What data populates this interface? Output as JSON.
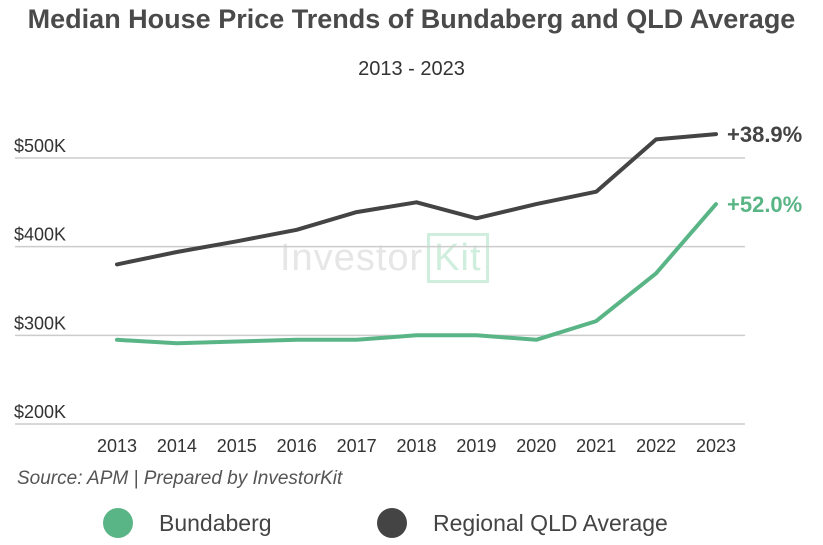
{
  "title": "Median House Price Trends of Bundaberg and QLD Average",
  "subtitle": "2013 - 2023",
  "source": "Source: APM | Prepared by InvestorKit",
  "watermark": {
    "part1": "Investor",
    "part2": "Kit"
  },
  "colors": {
    "bundaberg": "#5ab586",
    "regional": "#444444",
    "grid": "#cccccc",
    "tick": "#333333"
  },
  "chart_data": {
    "type": "line",
    "title": "Median House Price Trends of Bundaberg and QLD Average",
    "subtitle": "2013 - 2023",
    "x": [
      "2013",
      "2014",
      "2015",
      "2016",
      "2017",
      "2018",
      "2019",
      "2020",
      "2021",
      "2022",
      "2023"
    ],
    "ylim": [
      200000,
      530000
    ],
    "yticks": [
      200000,
      300000,
      400000,
      500000
    ],
    "ytick_labels": [
      "$200K",
      "$300K",
      "$400K",
      "$500K"
    ],
    "grid": true,
    "legend_position": "bottom",
    "series": [
      {
        "name": "Bundaberg",
        "color": "#5ab586",
        "values": [
          295000,
          291000,
          293000,
          295000,
          295000,
          300000,
          300000,
          295000,
          316000,
          370000,
          448000
        ],
        "end_label": "+52.0%"
      },
      {
        "name": "Regional QLD Average",
        "color": "#444444",
        "values": [
          380000,
          394000,
          406000,
          419000,
          439000,
          450000,
          432000,
          448000,
          462000,
          521000,
          527000
        ],
        "end_label": "+38.9%"
      }
    ]
  }
}
